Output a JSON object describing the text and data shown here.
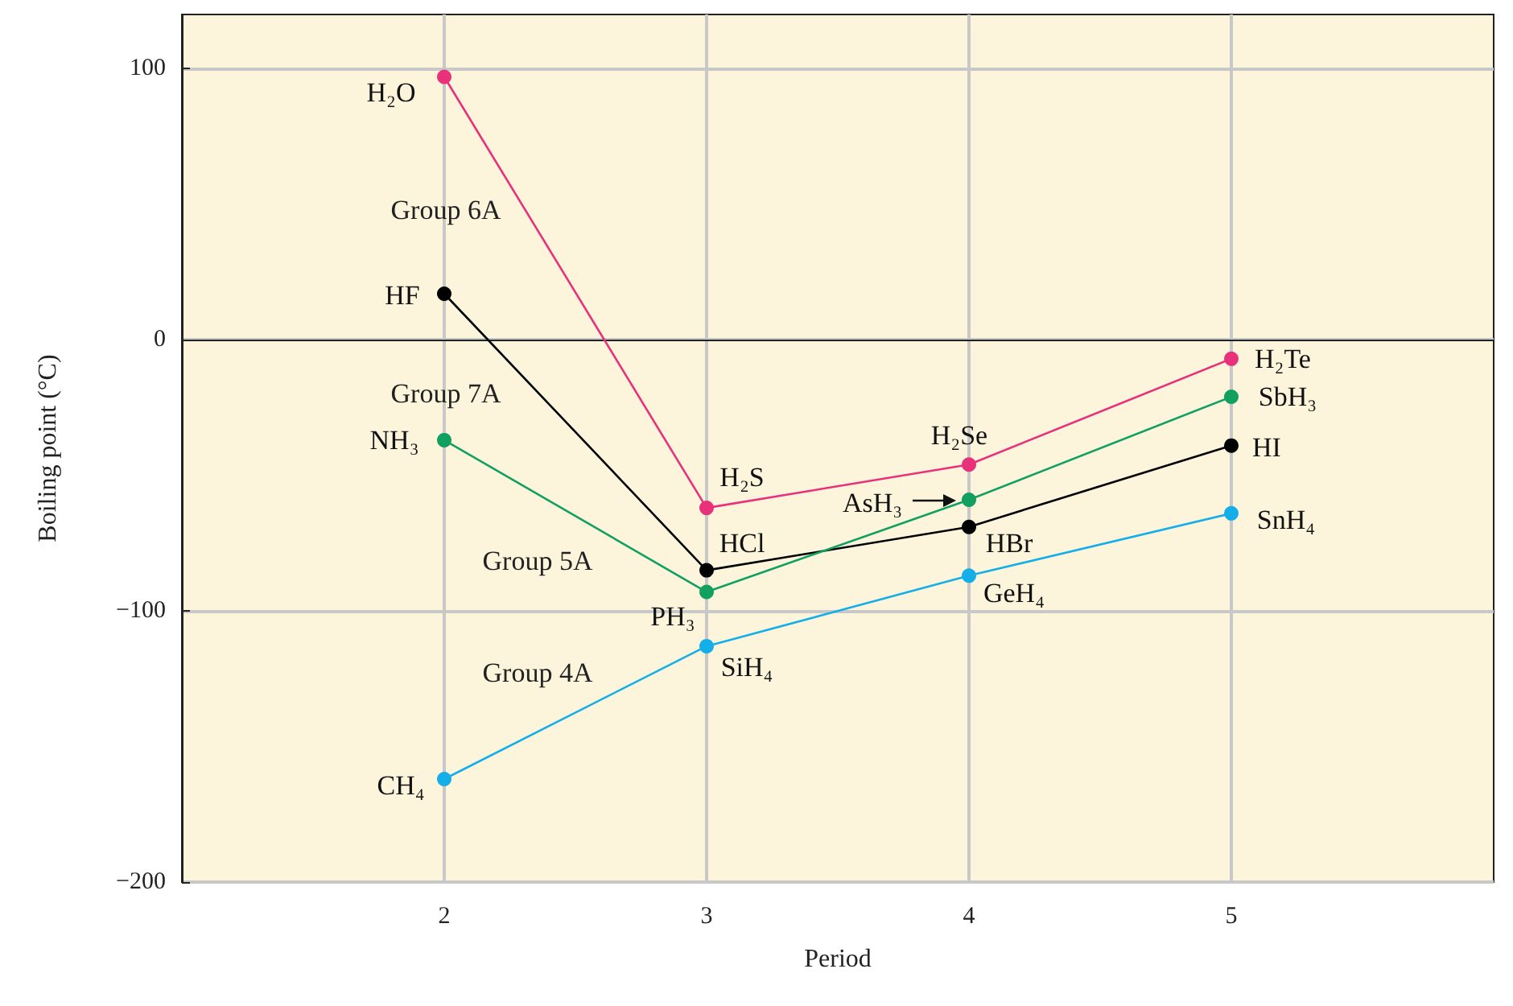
{
  "chart_data": {
    "type": "line",
    "xlabel": "Period",
    "ylabel": "Boiling point (°C)",
    "x": [
      2,
      3,
      4,
      5
    ],
    "series": [
      {
        "name": "Group 6A",
        "color": "#e8317a",
        "values": [
          97,
          -62,
          -46,
          -7
        ]
      },
      {
        "name": "Group 7A",
        "color": "#000000",
        "values": [
          17,
          -85,
          -69,
          -39
        ]
      },
      {
        "name": "Group 5A",
        "color": "#12a060",
        "values": [
          -37,
          -93,
          -59,
          -21
        ]
      },
      {
        "name": "Group 4A",
        "color": "#14aee8",
        "values": [
          -162,
          -113,
          -87,
          -64
        ]
      }
    ],
    "annotations": [
      {
        "text": "H₂O",
        "x": 2,
        "y": 97
      },
      {
        "text": "H₂S",
        "x": 3,
        "y": -62
      },
      {
        "text": "H₂Se",
        "x": 4,
        "y": -46
      },
      {
        "text": "H₂Te",
        "x": 5,
        "y": -7
      },
      {
        "text": "HF",
        "x": 2,
        "y": 17
      },
      {
        "text": "HCl",
        "x": 3,
        "y": -85
      },
      {
        "text": "HBr",
        "x": 4,
        "y": -69
      },
      {
        "text": "HI",
        "x": 5,
        "y": -39
      },
      {
        "text": "NH₃",
        "x": 2,
        "y": -37
      },
      {
        "text": "PH₃",
        "x": 3,
        "y": -93
      },
      {
        "text": "AsH₃",
        "x": 4,
        "y": -59
      },
      {
        "text": "SbH₃",
        "x": 5,
        "y": -21
      },
      {
        "text": "CH₄",
        "x": 2,
        "y": -162
      },
      {
        "text": "SiH₄",
        "x": 3,
        "y": -113
      },
      {
        "text": "GeH₄",
        "x": 4,
        "y": -87
      },
      {
        "text": "SnH₄",
        "x": 5,
        "y": -64
      }
    ],
    "xlim": [
      1,
      6
    ],
    "xticks": [
      2,
      3,
      4,
      5
    ],
    "ylim": [
      -200,
      120
    ],
    "yticks": [
      -200,
      -100,
      0,
      100
    ],
    "grid": true,
    "legend": false,
    "marker": "circle",
    "line_style": "solid"
  }
}
